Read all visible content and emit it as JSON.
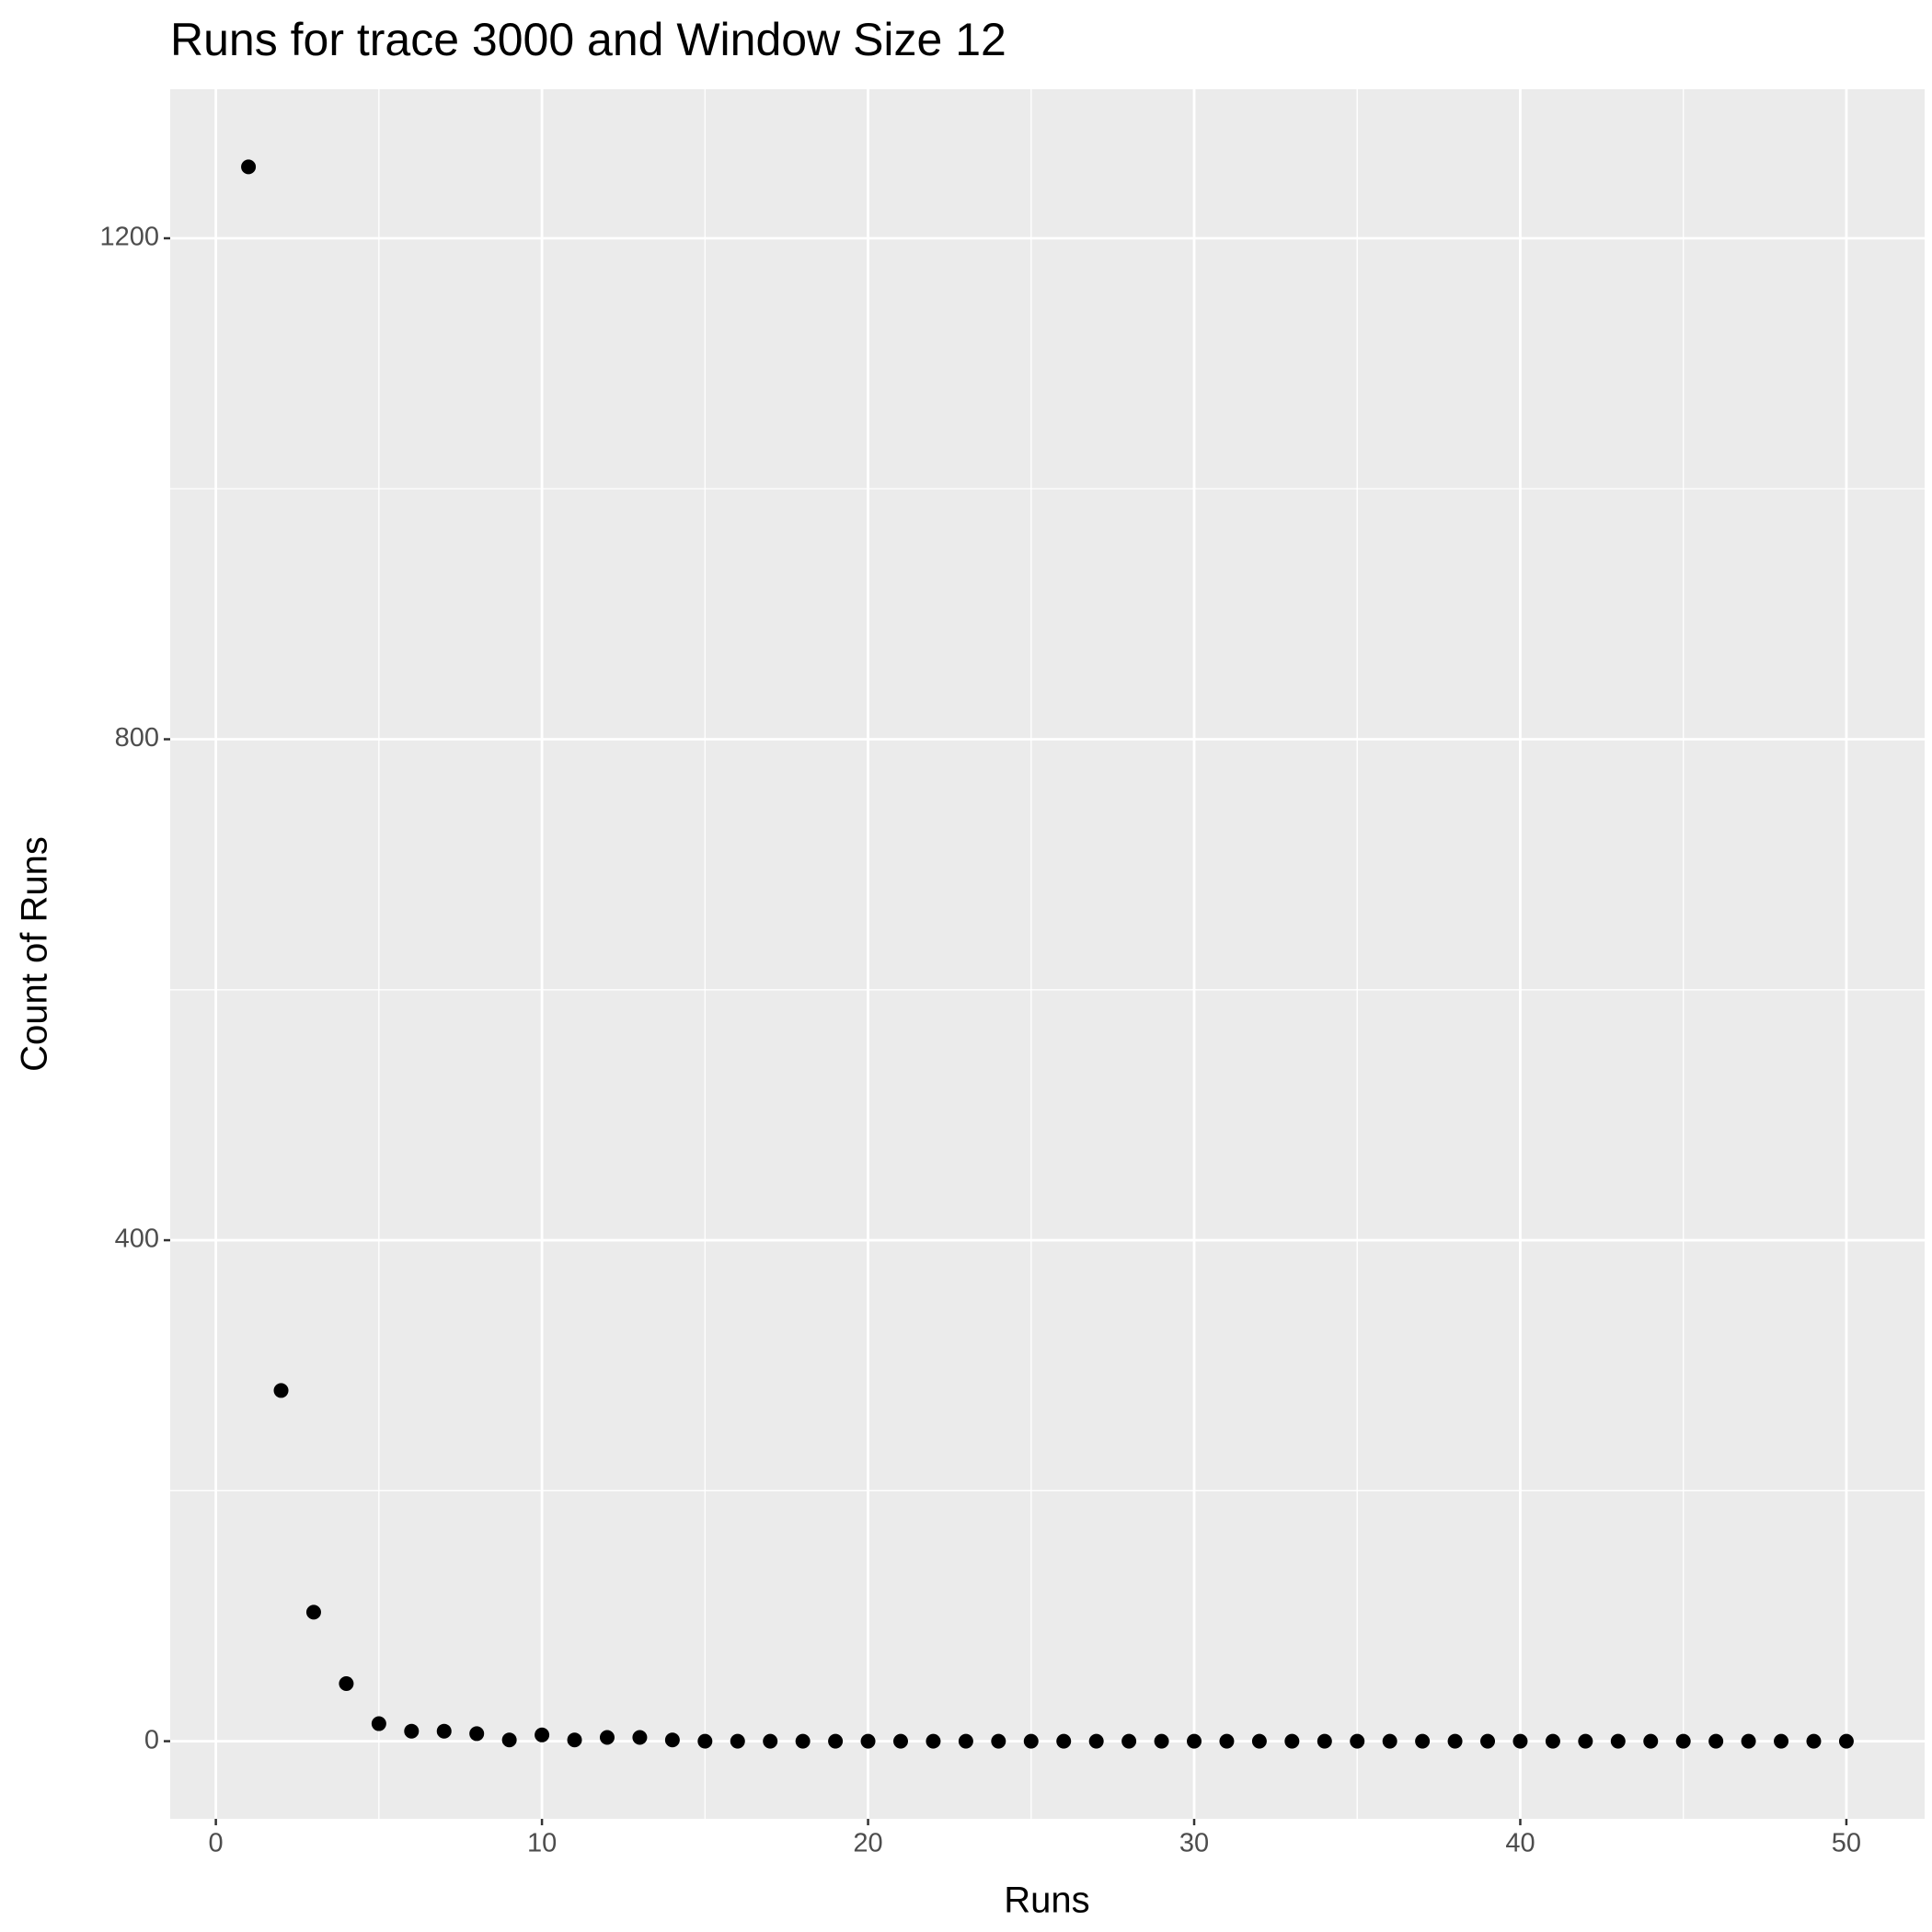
{
  "chart_data": {
    "type": "scatter",
    "title": "Runs for trace 3000 and Window Size 12",
    "x_label": "Runs",
    "y_label": "Count of Runs",
    "x": [
      1,
      2,
      3,
      4,
      5,
      6,
      7,
      8,
      9,
      10,
      11,
      12,
      13,
      14,
      15,
      16,
      17,
      18,
      19,
      20,
      21,
      22,
      23,
      24,
      25,
      26,
      27,
      28,
      29,
      30,
      31,
      32,
      33,
      34,
      35,
      36,
      37,
      38,
      39,
      40,
      41,
      42,
      43,
      44,
      45,
      46,
      47,
      48,
      49,
      50
    ],
    "values": [
      1257,
      280,
      103,
      46,
      14,
      8,
      8,
      6,
      1,
      5,
      1,
      3,
      3,
      1,
      0,
      0,
      0,
      0,
      0,
      0,
      0,
      0,
      0,
      0,
      0,
      0,
      0,
      0,
      0,
      0,
      0,
      0,
      0,
      0,
      0,
      0,
      0,
      0,
      0,
      0,
      0,
      0,
      0,
      0,
      0,
      0,
      0,
      0,
      0,
      0
    ],
    "color": "#000000",
    "xlim": [
      -1.4,
      52.4
    ],
    "ylim": [
      -62,
      1319
    ],
    "xticks": [
      0,
      10,
      20,
      30,
      40,
      50
    ],
    "yticks": [
      0,
      400,
      800,
      1200
    ],
    "grid": true
  }
}
